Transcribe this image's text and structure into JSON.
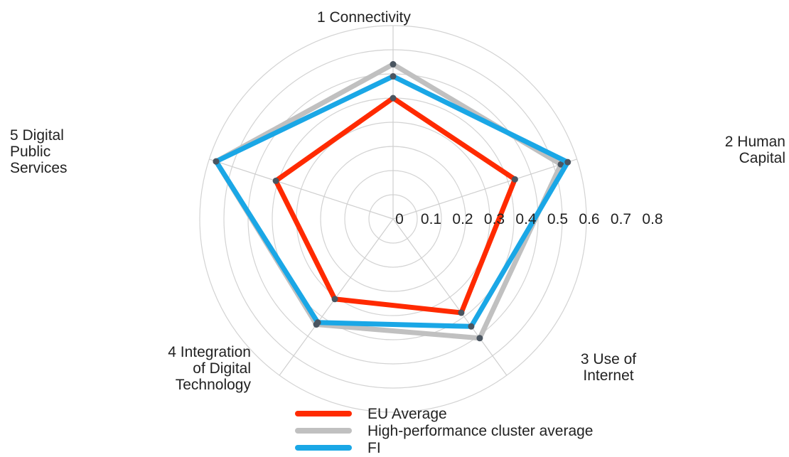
{
  "chart_data": {
    "type": "radar",
    "axes": [
      "1 Connectivity",
      "2 Human Capital",
      "3 Use of Internet",
      "4 Integration of Digital Technology",
      "5 Digital Public Services"
    ],
    "axis_labels_lines": [
      [
        "1 Connectivity"
      ],
      [
        "2 Human",
        "Capital"
      ],
      [
        "3 Use of",
        "Internet"
      ],
      [
        "4 Integration",
        "of Digital",
        "Technology"
      ],
      [
        "5 Digital",
        "Public",
        "Services"
      ]
    ],
    "ticks": [
      "0",
      "0.1",
      "0.2",
      "0.3",
      "0.4",
      "0.5",
      "0.6",
      "0.7",
      "0.8"
    ],
    "range": [
      0,
      0.8
    ],
    "grid": true,
    "legend_position": "bottom",
    "series": [
      {
        "name": "EU Average",
        "color": "#ff2a00",
        "values": [
          0.5,
          0.53,
          0.48,
          0.41,
          0.51
        ]
      },
      {
        "name": "High-performance cluster average",
        "color": "#c0c0c0",
        "values": [
          0.64,
          0.73,
          0.61,
          0.54,
          0.77
        ]
      },
      {
        "name": "FI",
        "color": "#1aa7e6",
        "values": [
          0.59,
          0.76,
          0.55,
          0.53,
          0.77
        ]
      }
    ]
  }
}
